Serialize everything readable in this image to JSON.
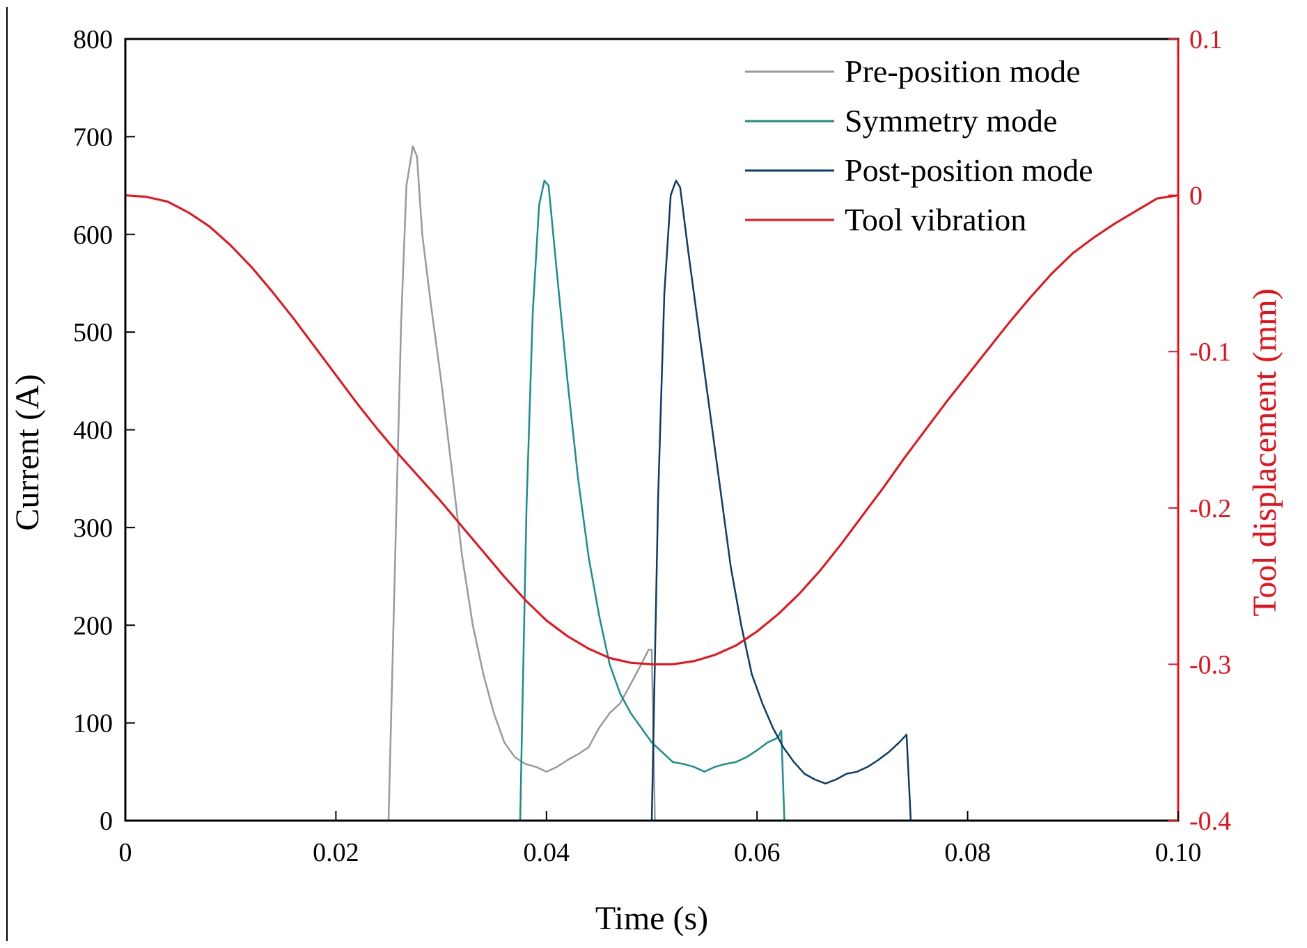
{
  "chart_data": {
    "type": "line",
    "xlabel": "Time (s)",
    "ylabel": "Current (A)",
    "y2label": "Tool displacement (mm)",
    "xlim": [
      0,
      0.1
    ],
    "ylim": [
      0,
      800
    ],
    "y2lim": [
      -0.4,
      0.1
    ],
    "xticks": [
      0,
      0.02,
      0.04,
      0.06,
      0.08,
      0.1
    ],
    "xtick_labels": [
      "0",
      "0.02",
      "0.04",
      "0.06",
      "0.08",
      "0.10"
    ],
    "yticks": [
      0,
      100,
      200,
      300,
      400,
      500,
      600,
      700,
      800
    ],
    "ytick_labels": [
      "0",
      "100",
      "200",
      "300",
      "400",
      "500",
      "600",
      "700",
      "800"
    ],
    "y2ticks": [
      -0.4,
      -0.3,
      -0.2,
      -0.1,
      0,
      0.1
    ],
    "y2tick_labels": [
      "-0.4",
      "-0.3",
      "-0.2",
      "-0.1",
      "0",
      "0.1"
    ],
    "legend_position": "top-right",
    "grid": false,
    "series": [
      {
        "name": "Pre-position mode",
        "color": "#999999",
        "axis": "left",
        "x": [
          0,
          0.025,
          0.0257,
          0.0262,
          0.0267,
          0.0273,
          0.0277,
          0.0282,
          0.029,
          0.03,
          0.031,
          0.032,
          0.033,
          0.034,
          0.035,
          0.036,
          0.037,
          0.038,
          0.039,
          0.04,
          0.041,
          0.042,
          0.043,
          0.044,
          0.045,
          0.046,
          0.047,
          0.048,
          0.049,
          0.0497,
          0.05,
          0.0503,
          0.1
        ],
        "y": [
          0,
          0,
          300,
          510,
          650,
          690,
          680,
          600,
          530,
          450,
          360,
          270,
          200,
          150,
          110,
          80,
          65,
          58,
          55,
          50,
          55,
          62,
          68,
          75,
          95,
          110,
          120,
          140,
          160,
          175,
          175,
          0,
          0
        ]
      },
      {
        "name": "Symmetry mode",
        "color": "#1b8f87",
        "axis": "left",
        "x": [
          0,
          0.0375,
          0.0381,
          0.0387,
          0.0393,
          0.0398,
          0.0402,
          0.041,
          0.042,
          0.043,
          0.044,
          0.045,
          0.046,
          0.047,
          0.048,
          0.049,
          0.05,
          0.051,
          0.052,
          0.053,
          0.054,
          0.055,
          0.056,
          0.057,
          0.058,
          0.059,
          0.06,
          0.061,
          0.062,
          0.0623,
          0.0626,
          0.1
        ],
        "y": [
          0,
          0,
          320,
          520,
          630,
          655,
          650,
          560,
          450,
          350,
          270,
          210,
          160,
          130,
          110,
          95,
          80,
          70,
          60,
          58,
          55,
          50,
          55,
          58,
          60,
          65,
          72,
          80,
          85,
          92,
          0,
          0
        ]
      },
      {
        "name": "Post-position mode",
        "color": "#0e3a66",
        "axis": "left",
        "x": [
          0,
          0.05,
          0.0506,
          0.0512,
          0.0518,
          0.0523,
          0.0527,
          0.0535,
          0.0545,
          0.0555,
          0.0565,
          0.0575,
          0.0585,
          0.0595,
          0.0605,
          0.0615,
          0.0625,
          0.0635,
          0.0645,
          0.0655,
          0.0665,
          0.0675,
          0.0685,
          0.0695,
          0.0705,
          0.0715,
          0.0725,
          0.0735,
          0.0742,
          0.0746,
          0.1
        ],
        "y": [
          0,
          0,
          330,
          540,
          640,
          655,
          648,
          580,
          500,
          420,
          340,
          260,
          200,
          150,
          120,
          95,
          75,
          60,
          48,
          42,
          38,
          42,
          48,
          50,
          55,
          62,
          70,
          80,
          88,
          0,
          0
        ]
      },
      {
        "name": "Tool vibration",
        "color": "#e8111b",
        "axis": "right",
        "x": [
          0,
          0.002,
          0.004,
          0.006,
          0.008,
          0.01,
          0.012,
          0.014,
          0.016,
          0.018,
          0.02,
          0.022,
          0.024,
          0.026,
          0.028,
          0.03,
          0.032,
          0.034,
          0.036,
          0.038,
          0.04,
          0.042,
          0.044,
          0.046,
          0.048,
          0.05,
          0.052,
          0.054,
          0.056,
          0.058,
          0.06,
          0.062,
          0.064,
          0.066,
          0.068,
          0.07,
          0.072,
          0.074,
          0.076,
          0.078,
          0.08,
          0.082,
          0.084,
          0.086,
          0.088,
          0.09,
          0.092,
          0.094,
          0.096,
          0.098,
          0.1
        ],
        "y": [
          0.0,
          -0.001,
          -0.004,
          -0.011,
          -0.02,
          -0.032,
          -0.046,
          -0.062,
          -0.079,
          -0.097,
          -0.115,
          -0.133,
          -0.15,
          -0.166,
          -0.181,
          -0.196,
          -0.212,
          -0.228,
          -0.244,
          -0.259,
          -0.272,
          -0.282,
          -0.29,
          -0.296,
          -0.299,
          -0.3,
          -0.3,
          -0.298,
          -0.294,
          -0.288,
          -0.279,
          -0.268,
          -0.255,
          -0.24,
          -0.223,
          -0.205,
          -0.187,
          -0.168,
          -0.15,
          -0.132,
          -0.115,
          -0.098,
          -0.081,
          -0.065,
          -0.05,
          -0.037,
          -0.027,
          -0.018,
          -0.01,
          -0.002,
          0.0
        ]
      }
    ]
  }
}
